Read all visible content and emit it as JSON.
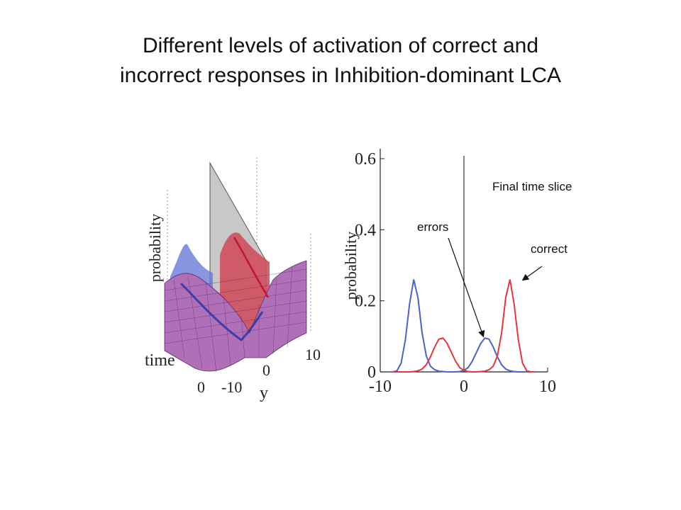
{
  "slide": {
    "title_line1": "Different levels of activation of correct and",
    "title_line2": "incorrect responses in Inhibition-dominant LCA"
  },
  "colors": {
    "errors_series": "#4a63c9",
    "correct_series": "#e8353b",
    "surface_fill": "#b070b8",
    "surface_grid": "#5a2a6a",
    "axis": "#222222",
    "boundary_plane": "#c8c8c8"
  },
  "chart_data": [
    {
      "type": "surface",
      "xlabel": "y",
      "ylabel": "time",
      "zlabel": "probability",
      "x_ticks": [
        "-10",
        "0",
        "10"
      ],
      "time_ticks": [
        "0"
      ]
    },
    {
      "type": "line",
      "annotation_title": "Final time slice",
      "ylabel": "probability",
      "xlabel": "",
      "xlim": [
        -10,
        10
      ],
      "ylim": [
        0,
        0.6
      ],
      "x_ticks": [
        "-10",
        "0",
        "10"
      ],
      "y_ticks": [
        "0",
        "0.2",
        "0.4",
        "0.6"
      ],
      "vertical_line_x": 0,
      "series": [
        {
          "color": "#4a63c9",
          "x": [
            -8.5,
            -8,
            -7.5,
            -7,
            -6.5,
            -6,
            -5.5,
            -5,
            -4.5,
            -4,
            -3.5,
            -3,
            -2.5,
            -2,
            -1.5,
            -1,
            -0.5,
            0,
            0.5,
            1,
            1.5,
            2,
            2.5,
            3,
            3.5,
            4,
            4.5,
            5,
            5.5,
            6,
            6.5,
            7,
            7.5,
            8,
            8.5
          ],
          "y": [
            0,
            0.003,
            0.025,
            0.09,
            0.19,
            0.26,
            0.21,
            0.11,
            0.045,
            0.016,
            0.006,
            0.002,
            0.001,
            0,
            0,
            0,
            0.001,
            0.004,
            0.012,
            0.03,
            0.055,
            0.08,
            0.095,
            0.092,
            0.07,
            0.042,
            0.02,
            0.008,
            0.003,
            0.001,
            0,
            0,
            0,
            0,
            0
          ]
        },
        {
          "color": "#e8353b",
          "x": [
            -8.5,
            -8,
            -7.5,
            -7,
            -6.5,
            -6,
            -5.5,
            -5,
            -4.5,
            -4,
            -3.5,
            -3,
            -2.5,
            -2,
            -1.5,
            -1,
            -0.5,
            0,
            0.5,
            1,
            1.5,
            2,
            2.5,
            3,
            3.5,
            4,
            4.5,
            5,
            5.5,
            6,
            6.5,
            7,
            7.5,
            8,
            8.5
          ],
          "y": [
            0,
            0,
            0,
            0,
            0,
            0.001,
            0.003,
            0.008,
            0.02,
            0.042,
            0.07,
            0.092,
            0.095,
            0.08,
            0.055,
            0.03,
            0.012,
            0.004,
            0.001,
            0,
            0,
            0.001,
            0.002,
            0.006,
            0.016,
            0.045,
            0.11,
            0.21,
            0.26,
            0.19,
            0.09,
            0.025,
            0.003,
            0,
            0
          ]
        }
      ],
      "annotations": [
        {
          "text": "errors",
          "target_x": 2.5,
          "target_y": 0.095
        },
        {
          "text": "correct",
          "target_x": 6.5,
          "target_y": 0.25
        }
      ]
    }
  ]
}
